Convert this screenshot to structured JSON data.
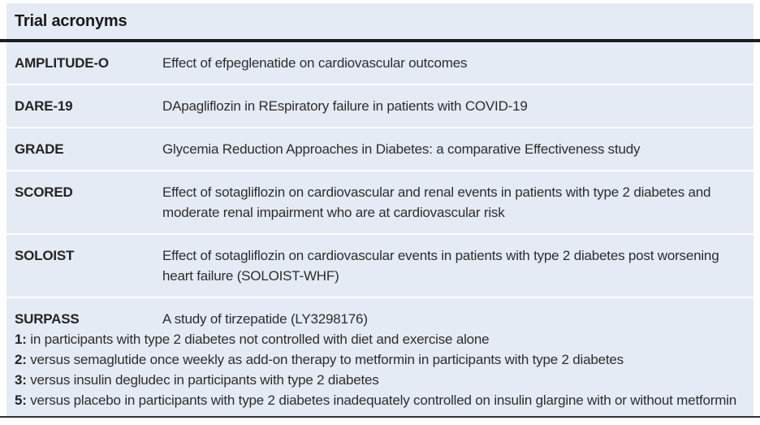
{
  "title": "Trial acronyms",
  "colors": {
    "row_background": "#e5ebf5",
    "separator": "#ffffff",
    "top_rule": "#1c1e22",
    "bottom_rule": "#2e343c",
    "text": "#2d2d2d"
  },
  "rows": [
    {
      "acronym": "AMPLITUDE-O",
      "description": "Effect of efpeglenatide on cardiovascular outcomes"
    },
    {
      "acronym": "DARE-19",
      "description": "DApagliflozin in REspiratory failure in patients with COVID-19"
    },
    {
      "acronym": "GRADE",
      "description": "Glycemia Reduction Approaches in Diabetes: a comparative Effectiveness study"
    },
    {
      "acronym": "SCORED",
      "description": "Effect of sotagliflozin on cardiovascular and renal events in patients with type 2 diabetes and moderate renal impairment who are at cardiovascular risk"
    },
    {
      "acronym": "SOLOIST",
      "description": "Effect of sotagliflozin on cardiovascular events in patients with type 2 diabetes post worsening heart failure (SOLOIST-WHF)"
    },
    {
      "acronym": "SURPASS",
      "description": "A study of tirzepatide (LY3298176)",
      "variants": [
        {
          "label": "1:",
          "text": "in participants with type 2 diabetes not controlled with diet and exercise alone"
        },
        {
          "label": "2:",
          "text": "versus semaglutide once weekly as add-on therapy to metformin in participants with type 2 diabetes"
        },
        {
          "label": "3:",
          "text": "versus insulin degludec in participants with type 2 diabetes"
        },
        {
          "label": "5:",
          "text": "versus placebo in participants with type 2 diabetes inadequately controlled on insulin glargine with or without metformin"
        }
      ]
    }
  ]
}
